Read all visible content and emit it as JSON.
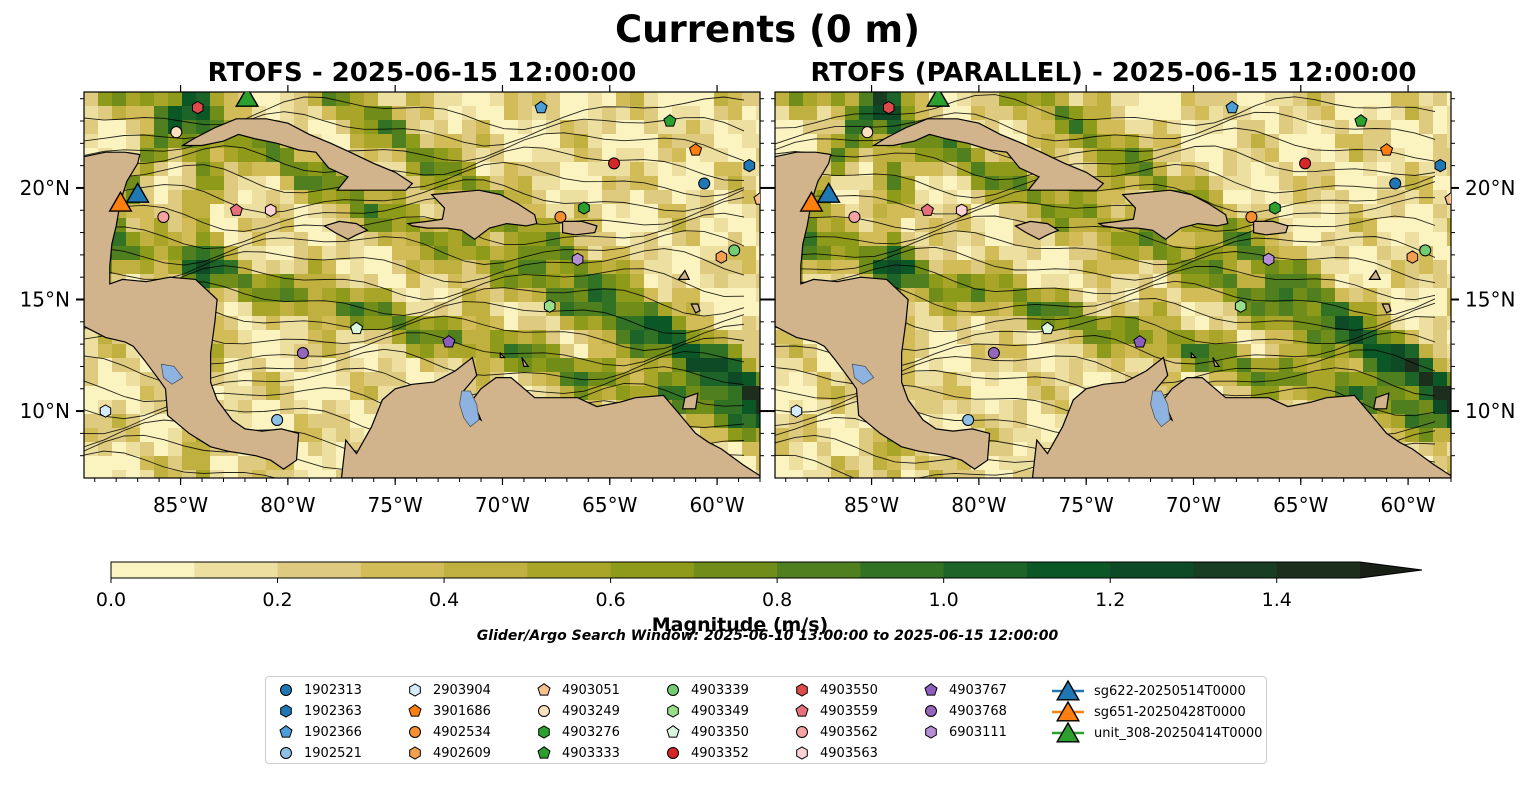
{
  "title": "Currents (0 m)",
  "panels": [
    {
      "title": "RTOFS - 2025-06-15 12:00:00"
    },
    {
      "title": "RTOFS (PARALLEL) - 2025-06-15 12:00:00"
    }
  ],
  "map": {
    "lon_range": [
      -89.5,
      -58.0
    ],
    "lat_range": [
      7.0,
      24.3
    ],
    "lon_ticks": [
      "85°W",
      "80°W",
      "75°W",
      "70°W",
      "65°W",
      "60°W"
    ],
    "lat_ticks": [
      "20°N",
      "15°N",
      "10°N"
    ],
    "land_color": "#d2b48c",
    "lake_color": "#8fb3e0"
  },
  "colorbar": {
    "label": "Magnitude (m/s)",
    "min": 0.0,
    "max": 1.5,
    "ticks": [
      "0.0",
      "0.2",
      "0.4",
      "0.6",
      "0.8",
      "1.0",
      "1.2",
      "1.4"
    ],
    "colors": [
      "#fbf3c0",
      "#ecdfa0",
      "#dfcb80",
      "#d2bc58",
      "#bfb03f",
      "#a8a528",
      "#8e9a1a",
      "#6f8d18",
      "#4f7f1f",
      "#327224",
      "#1c6428",
      "#0b5726",
      "#0d4a25",
      "#183d23",
      "#1d2f1c"
    ],
    "extend": "max"
  },
  "search_window": "Glider/Argo Search Window: 2025-06-10 13:00:00 to 2025-06-15 12:00:00",
  "legend": {
    "floats": [
      {
        "id": "1902313",
        "marker": "circle",
        "color": "#1f77b4",
        "lon": -60.6,
        "lat": 20.2
      },
      {
        "id": "1902363",
        "marker": "hexagon",
        "color": "#1f77b4",
        "lon": -58.5,
        "lat": 21.0
      },
      {
        "id": "1902366",
        "marker": "pentagon",
        "color": "#4c9fd6",
        "lon": -68.2,
        "lat": 23.6
      },
      {
        "id": "1902521",
        "marker": "circle",
        "color": "#8ec1e8",
        "lon": -80.5,
        "lat": 9.6
      },
      {
        "id": "2903904",
        "marker": "hexagon",
        "color": "#d6ecfb",
        "lon": -88.5,
        "lat": 10.0
      },
      {
        "id": "3901686",
        "marker": "pentagon",
        "color": "#ff7f0e",
        "lon": -61.0,
        "lat": 21.7
      },
      {
        "id": "4902534",
        "marker": "circle",
        "color": "#f59032",
        "lon": -67.3,
        "lat": 18.7
      },
      {
        "id": "4902609",
        "marker": "hexagon",
        "color": "#f5a050",
        "lon": -59.8,
        "lat": 16.9
      },
      {
        "id": "4903051",
        "marker": "pentagon",
        "color": "#f8c08c",
        "lon": -58.0,
        "lat": 19.5
      },
      {
        "id": "4903249",
        "marker": "circle",
        "color": "#fde0c0",
        "lon": -85.2,
        "lat": 22.5
      },
      {
        "id": "4903276",
        "marker": "hexagon",
        "color": "#2ca02c",
        "lon": -66.2,
        "lat": 19.1
      },
      {
        "id": "4903333",
        "marker": "pentagon",
        "color": "#2ca02c",
        "lon": -62.2,
        "lat": 23.0
      },
      {
        "id": "4903339",
        "marker": "circle",
        "color": "#73cc73",
        "lon": -59.2,
        "lat": 17.2
      },
      {
        "id": "4903349",
        "marker": "hexagon",
        "color": "#98df8a",
        "lon": -67.8,
        "lat": 14.7
      },
      {
        "id": "4903350",
        "marker": "pentagon",
        "color": "#dcf6dc",
        "lon": -76.8,
        "lat": 13.7
      },
      {
        "id": "4903352",
        "marker": "circle",
        "color": "#d62728",
        "lon": -64.8,
        "lat": 21.1
      },
      {
        "id": "4903550",
        "marker": "hexagon",
        "color": "#de4a4a",
        "lon": -84.2,
        "lat": 23.6
      },
      {
        "id": "4903559",
        "marker": "pentagon",
        "color": "#e8707a",
        "lon": -82.4,
        "lat": 19.0
      },
      {
        "id": "4903562",
        "marker": "circle",
        "color": "#f5a3a3",
        "lon": -85.8,
        "lat": 18.7
      },
      {
        "id": "4903563",
        "marker": "hexagon",
        "color": "#fcd2d6",
        "lon": -80.8,
        "lat": 19.0
      },
      {
        "id": "4903767",
        "marker": "pentagon",
        "color": "#8c5fbf",
        "lon": -72.5,
        "lat": 13.1
      },
      {
        "id": "4903768",
        "marker": "circle",
        "color": "#9467bd",
        "lon": -79.3,
        "lat": 12.6
      },
      {
        "id": "6903111",
        "marker": "hexagon",
        "color": "#b48fd6",
        "lon": -66.5,
        "lat": 16.8
      }
    ],
    "gliders": [
      {
        "id": "sg622-20250514T0000",
        "color": "#1f77b4",
        "lon": -87.0,
        "lat": 19.8
      },
      {
        "id": "sg651-20250428T0000",
        "color": "#ff7f0e",
        "lon": -87.8,
        "lat": 19.4
      },
      {
        "id": "unit_308-20250414T0000",
        "color": "#2ca02c",
        "lon": -81.9,
        "lat": 24.1
      }
    ]
  }
}
